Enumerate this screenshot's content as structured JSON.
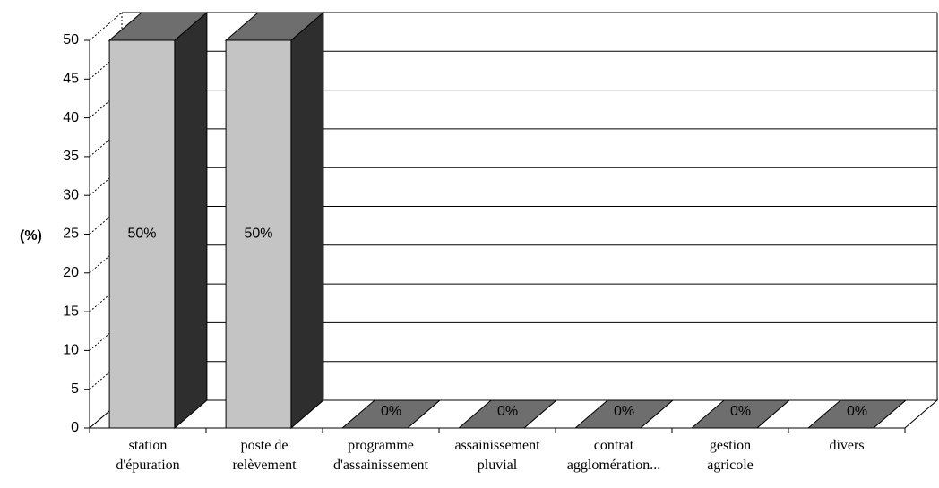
{
  "chart_data": {
    "type": "bar3d",
    "ylabel": "(%)",
    "categories": [
      "station\nd'épuration",
      "poste de\nrelèvement",
      "programme\nd'assainissement",
      "assainissement\npluvial",
      "contrat\nagglomération...",
      "gestion\nagricole",
      "divers"
    ],
    "values": [
      50,
      50,
      0,
      0,
      0,
      0,
      0
    ],
    "value_labels": [
      "50%",
      "50%",
      "0%",
      "0%",
      "0%",
      "0%",
      "0%"
    ],
    "colors": {
      "front": "#c4c4c4",
      "side": "#2e2e2e",
      "top": "#6e6e6e"
    },
    "ylim": [
      0,
      50
    ],
    "yticks": [
      0,
      5,
      10,
      15,
      20,
      25,
      30,
      35,
      40,
      45,
      50
    ],
    "grid": true
  }
}
